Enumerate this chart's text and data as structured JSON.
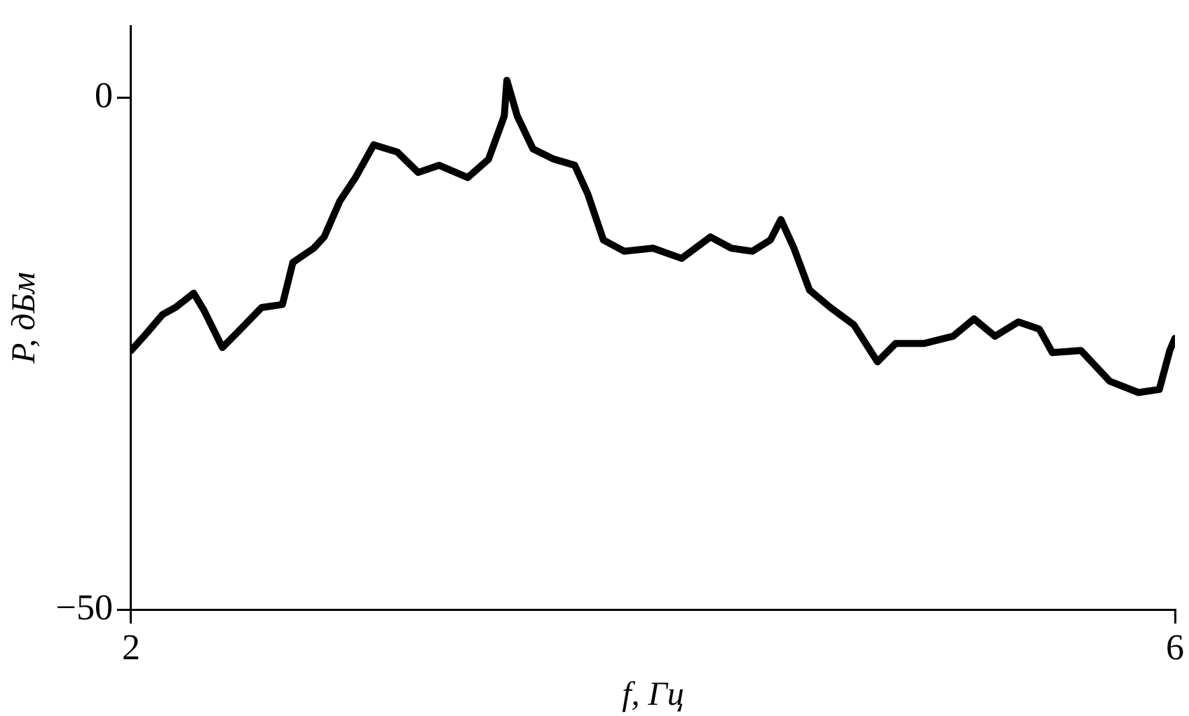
{
  "chart_data": {
    "type": "line",
    "xlabel": "f, Гц",
    "ylabel": "P, дБм",
    "xlim": [
      2,
      6
    ],
    "xticks": [
      2,
      6
    ],
    "ylim": [
      -50,
      7
    ],
    "yticks": [
      {
        "value": -50,
        "label": "−50"
      },
      0
    ],
    "grid": false,
    "legend": false,
    "marker": "none",
    "line_style": "solid",
    "series": [
      {
        "color": "#000000",
        "x": [
          2.0,
          2.06,
          2.12,
          2.17,
          2.24,
          2.28,
          2.35,
          2.42,
          2.5,
          2.58,
          2.62,
          2.7,
          2.74,
          2.8,
          2.86,
          2.93,
          3.02,
          3.1,
          3.18,
          3.29,
          3.37,
          3.43,
          3.44,
          3.48,
          3.54,
          3.62,
          3.7,
          3.75,
          3.81,
          3.89,
          4.0,
          4.11,
          4.22,
          4.3,
          4.38,
          4.45,
          4.49,
          4.54,
          4.6,
          4.68,
          4.77,
          4.86,
          4.93,
          5.04,
          5.15,
          5.23,
          5.31,
          5.4,
          5.48,
          5.53,
          5.64,
          5.75,
          5.86,
          5.94,
          5.98,
          6.0
        ],
        "values": [
          -24.7,
          -23.0,
          -21.2,
          -20.5,
          -19.1,
          -20.8,
          -24.4,
          -22.6,
          -20.5,
          -20.2,
          -16.1,
          -14.7,
          -13.6,
          -10.1,
          -7.8,
          -4.6,
          -5.3,
          -7.3,
          -6.6,
          -7.8,
          -6.0,
          -1.8,
          1.7,
          -1.8,
          -5.0,
          -6.0,
          -6.6,
          -9.4,
          -13.9,
          -15.0,
          -14.7,
          -15.7,
          -13.6,
          -14.7,
          -15.0,
          -13.9,
          -11.9,
          -14.7,
          -18.8,
          -20.5,
          -22.2,
          -25.8,
          -24.0,
          -24.0,
          -23.3,
          -21.6,
          -23.3,
          -21.9,
          -22.6,
          -24.9,
          -24.7,
          -27.7,
          -28.8,
          -28.5,
          -24.7,
          -23.5
        ]
      }
    ]
  }
}
